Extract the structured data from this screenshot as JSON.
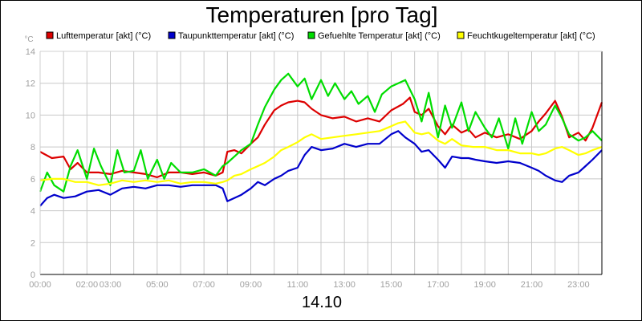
{
  "chart_data": {
    "type": "line",
    "title": "Temperaturen [pro Tag]",
    "xlabel": "14.10",
    "ylabel": "°C",
    "xlim": [
      0,
      24
    ],
    "ylim": [
      0,
      14
    ],
    "yticks": [
      0,
      2,
      4,
      6,
      8,
      10,
      12,
      14
    ],
    "xticks": [
      {
        "h": 0,
        "label": "00:00"
      },
      {
        "h": 2,
        "label": "02:00"
      },
      {
        "h": 3,
        "label": "03:00"
      },
      {
        "h": 5,
        "label": "05:00"
      },
      {
        "h": 7,
        "label": "07:00"
      },
      {
        "h": 9,
        "label": "09:00"
      },
      {
        "h": 11,
        "label": "11:00"
      },
      {
        "h": 13,
        "label": "13:00"
      },
      {
        "h": 15,
        "label": "15:00"
      },
      {
        "h": 17,
        "label": "17:00"
      },
      {
        "h": 19,
        "label": "19:00"
      },
      {
        "h": 21,
        "label": "21:00"
      },
      {
        "h": 23,
        "label": "23:00"
      }
    ],
    "grid": true,
    "legend_position": "top",
    "series": [
      {
        "name": "Lufttemperatur [akt] (°C)",
        "color": "#dd0000",
        "x": [
          0,
          0.5,
          1,
          1.3,
          1.6,
          2,
          2.5,
          3,
          3.5,
          4,
          4.5,
          5,
          5.5,
          6,
          6.5,
          7,
          7.5,
          7.8,
          8,
          8.3,
          8.6,
          9,
          9.3,
          9.6,
          10,
          10.3,
          10.6,
          11,
          11.3,
          11.6,
          12,
          12.5,
          13,
          13.5,
          14,
          14.5,
          15,
          15.5,
          15.8,
          16,
          16.3,
          16.6,
          17,
          17.3,
          17.6,
          18,
          18.3,
          18.6,
          19,
          19.5,
          20,
          20.5,
          21,
          21.3,
          21.6,
          22,
          22.3,
          22.6,
          23,
          23.3,
          23.6,
          24
        ],
        "values": [
          7.7,
          7.3,
          7.4,
          6.6,
          7.0,
          6.4,
          6.4,
          6.3,
          6.5,
          6.4,
          6.3,
          6.1,
          6.4,
          6.4,
          6.3,
          6.4,
          6.2,
          6.4,
          7.7,
          7.8,
          7.6,
          8.2,
          8.6,
          9.4,
          10.3,
          10.6,
          10.8,
          10.9,
          10.8,
          10.4,
          10.0,
          9.8,
          9.9,
          9.6,
          9.8,
          9.6,
          10.3,
          10.7,
          11.1,
          10.2,
          10.0,
          10.4,
          9.3,
          8.8,
          9.4,
          8.9,
          9.1,
          8.6,
          8.9,
          8.6,
          8.8,
          8.5,
          9.0,
          9.6,
          10.1,
          10.9,
          9.9,
          8.6,
          8.9,
          8.4,
          9.2,
          10.8
        ]
      },
      {
        "name": "Taupunkttemperatur [akt] (°C)",
        "color": "#0000cc",
        "x": [
          0,
          0.3,
          0.6,
          1,
          1.5,
          2,
          2.5,
          3,
          3.5,
          4,
          4.5,
          5,
          5.5,
          6,
          6.5,
          7,
          7.5,
          7.8,
          8,
          8.3,
          8.6,
          9,
          9.3,
          9.6,
          10,
          10.3,
          10.6,
          11,
          11.3,
          11.6,
          12,
          12.5,
          13,
          13.5,
          14,
          14.5,
          15,
          15.3,
          15.6,
          16,
          16.3,
          16.6,
          17,
          17.3,
          17.6,
          18,
          18.3,
          18.6,
          19,
          19.5,
          20,
          20.5,
          21,
          21.3,
          21.6,
          22,
          22.3,
          22.6,
          23,
          23.3,
          23.6,
          24
        ],
        "values": [
          4.3,
          4.8,
          5.0,
          4.8,
          4.9,
          5.2,
          5.3,
          5.0,
          5.4,
          5.5,
          5.4,
          5.6,
          5.6,
          5.5,
          5.6,
          5.6,
          5.6,
          5.4,
          4.6,
          4.8,
          5.0,
          5.4,
          5.8,
          5.6,
          6.0,
          6.2,
          6.5,
          6.7,
          7.5,
          8.0,
          7.8,
          7.9,
          8.2,
          8.0,
          8.2,
          8.2,
          8.8,
          9.0,
          8.6,
          8.2,
          7.7,
          7.8,
          7.2,
          6.7,
          7.4,
          7.3,
          7.3,
          7.2,
          7.1,
          7.0,
          7.1,
          7.0,
          6.7,
          6.5,
          6.2,
          5.9,
          5.8,
          6.2,
          6.4,
          6.8,
          7.2,
          7.8
        ]
      },
      {
        "name": "Gefuehlte Temperatur [akt] (°C)",
        "color": "#00dd00",
        "x": [
          0,
          0.3,
          0.6,
          1,
          1.3,
          1.6,
          2,
          2.3,
          2.6,
          3,
          3.3,
          3.6,
          4,
          4.3,
          4.6,
          5,
          5.3,
          5.6,
          6,
          6.5,
          7,
          7.5,
          7.8,
          8,
          8.3,
          8.6,
          9,
          9.3,
          9.6,
          10,
          10.3,
          10.6,
          11,
          11.3,
          11.6,
          12,
          12.3,
          12.6,
          13,
          13.3,
          13.6,
          14,
          14.3,
          14.6,
          15,
          15.3,
          15.6,
          16,
          16.3,
          16.6,
          17,
          17.3,
          17.6,
          18,
          18.3,
          18.6,
          19,
          19.3,
          19.6,
          20,
          20.3,
          20.6,
          21,
          21.3,
          21.6,
          22,
          22.3,
          22.6,
          23,
          23.3,
          23.6,
          24
        ],
        "values": [
          5.2,
          6.4,
          5.6,
          5.2,
          6.8,
          7.8,
          6.0,
          7.9,
          6.8,
          5.6,
          7.8,
          6.4,
          6.5,
          7.8,
          6.0,
          7.2,
          6.0,
          7.0,
          6.4,
          6.4,
          6.6,
          6.2,
          6.8,
          7.0,
          7.4,
          7.8,
          8.2,
          9.4,
          10.5,
          11.6,
          12.2,
          12.6,
          11.8,
          12.3,
          11.0,
          12.2,
          11.2,
          12.0,
          11.0,
          11.5,
          10.7,
          11.2,
          10.2,
          11.3,
          11.8,
          12.0,
          12.2,
          11.0,
          9.6,
          11.4,
          8.6,
          10.6,
          9.2,
          10.8,
          9.0,
          10.2,
          9.2,
          8.6,
          9.8,
          7.9,
          9.8,
          8.2,
          10.2,
          9.0,
          9.4,
          10.6,
          9.8,
          8.8,
          8.4,
          8.6,
          9.0,
          8.4
        ]
      },
      {
        "name": "Feuchtkugeltemperatur [akt] (°C)",
        "color": "#ffff00",
        "x": [
          0,
          0.5,
          1,
          1.5,
          2,
          2.5,
          3,
          3.5,
          4,
          4.5,
          5,
          5.5,
          6,
          6.5,
          7,
          7.5,
          7.8,
          8,
          8.3,
          8.6,
          9,
          9.3,
          9.6,
          10,
          10.3,
          10.6,
          11,
          11.3,
          11.6,
          12,
          12.5,
          13,
          13.5,
          14,
          14.5,
          15,
          15.3,
          15.6,
          16,
          16.3,
          16.6,
          17,
          17.3,
          17.6,
          18,
          18.5,
          19,
          19.5,
          20,
          20.5,
          21,
          21.3,
          21.6,
          22,
          22.3,
          22.6,
          23,
          23.3,
          23.6,
          24
        ],
        "values": [
          5.9,
          6.0,
          6.0,
          5.8,
          5.8,
          5.6,
          5.7,
          5.9,
          5.8,
          5.9,
          5.8,
          5.9,
          5.7,
          5.8,
          5.8,
          5.7,
          5.8,
          5.9,
          6.2,
          6.3,
          6.6,
          6.8,
          7.0,
          7.4,
          7.8,
          8.0,
          8.3,
          8.6,
          8.8,
          8.5,
          8.6,
          8.7,
          8.8,
          8.9,
          9.0,
          9.3,
          9.5,
          9.6,
          8.9,
          8.8,
          8.9,
          8.4,
          8.2,
          8.5,
          8.1,
          8.0,
          8.0,
          7.8,
          7.8,
          7.6,
          7.6,
          7.5,
          7.6,
          7.9,
          8.0,
          7.8,
          7.5,
          7.6,
          7.8,
          8.0
        ]
      }
    ]
  }
}
